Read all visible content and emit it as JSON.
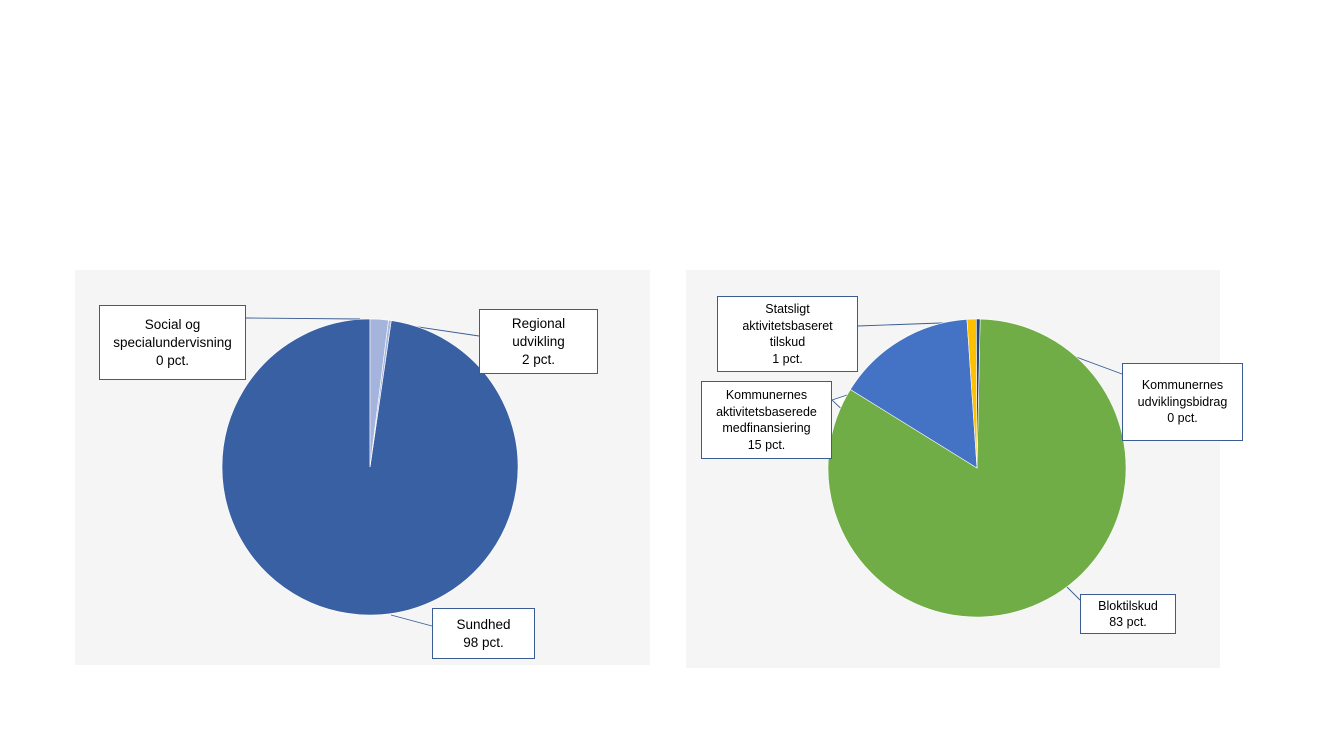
{
  "chart_data": [
    {
      "type": "pie",
      "slices": [
        {
          "label_lines": [
            "Sundhed",
            "98 pct."
          ],
          "value": 98,
          "color": "#3860a3"
        },
        {
          "label_lines": [
            "Social og",
            "specialundervisning",
            "0 pct."
          ],
          "value": 0.3,
          "color": "#a9b7dc"
        },
        {
          "label_lines": [
            "Regional",
            "udvikling",
            "2 pct."
          ],
          "value": 2,
          "color": "#a5b4dc"
        }
      ]
    },
    {
      "type": "pie",
      "slices": [
        {
          "label_lines": [
            "Bloktilskud",
            "83 pct."
          ],
          "value": 83,
          "color": "#70ad47"
        },
        {
          "label_lines": [
            "Kommunernes",
            "aktivitetsbaserede",
            "medfinansiering",
            "15 pct."
          ],
          "value": 15,
          "color": "#4472c4"
        },
        {
          "label_lines": [
            "Statsligt",
            "aktivitetsbaseret",
            "tilskud",
            "1 pct."
          ],
          "value": 1,
          "color": "#ffc000"
        },
        {
          "label_lines": [
            "Kommunernes",
            "udviklingsbidrag",
            "0 pct."
          ],
          "value": 0.4,
          "color": "#264478"
        }
      ]
    }
  ]
}
